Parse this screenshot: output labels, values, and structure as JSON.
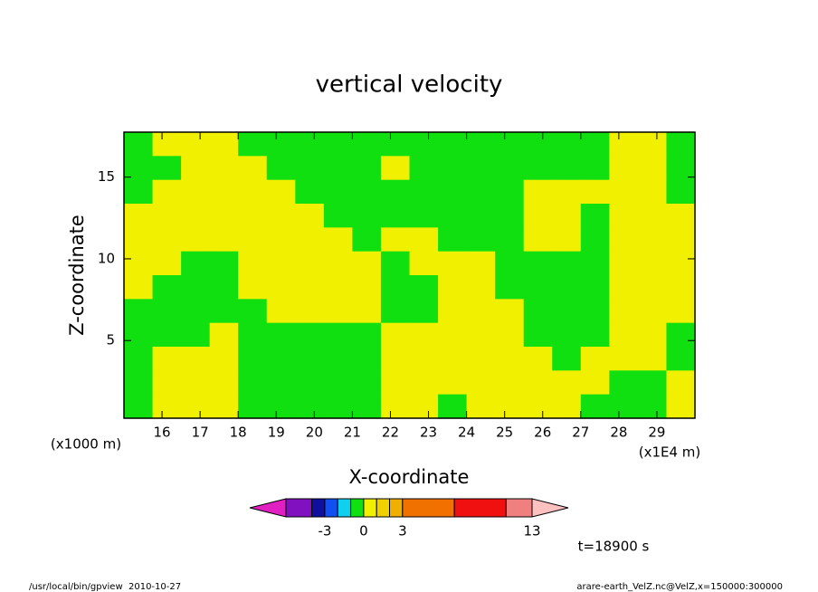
{
  "chart_data": {
    "type": "contour",
    "title": "vertical velocity",
    "x_label": "X-coordinate",
    "y_label": "Z-coordinate",
    "x_unit": "(x1E4 m)",
    "y_unit": "(x1000 m)",
    "xlim": [
      15,
      30
    ],
    "ylim": [
      0.25,
      17.75
    ],
    "xticks": [
      16,
      17,
      18,
      19,
      20,
      21,
      22,
      23,
      24,
      25,
      26,
      27,
      28,
      29
    ],
    "yticks": [
      5,
      10,
      15
    ],
    "z": [
      [
        -0.5,
        0.5,
        0.5,
        0.5,
        -0.5,
        -0.5,
        -0.5,
        -0.5,
        -0.5,
        -0.5,
        -0.5,
        -0.5,
        -0.5,
        -0.5,
        -0.5,
        -0.5,
        -0.5,
        0.5,
        0.5,
        -0.5
      ],
      [
        -0.5,
        -0.5,
        0.5,
        0.5,
        0.5,
        -0.5,
        -0.5,
        -0.5,
        -0.5,
        0.5,
        -0.5,
        -0.5,
        -0.5,
        -0.5,
        -0.5,
        -0.5,
        -0.5,
        0.5,
        0.5,
        -0.5
      ],
      [
        -0.5,
        0.5,
        0.5,
        0.5,
        0.5,
        0.5,
        -0.5,
        -0.5,
        -0.5,
        -0.5,
        -0.5,
        -0.5,
        -0.5,
        -0.5,
        0.5,
        0.5,
        0.5,
        0.5,
        0.5,
        -0.5
      ],
      [
        0.5,
        0.5,
        0.5,
        0.5,
        0.5,
        0.5,
        0.5,
        -0.5,
        -0.5,
        -0.5,
        -0.5,
        -0.5,
        -0.5,
        -0.5,
        0.5,
        0.5,
        -0.5,
        0.5,
        0.5,
        0.5
      ],
      [
        0.5,
        0.5,
        0.5,
        0.5,
        0.5,
        0.5,
        0.5,
        0.5,
        -0.5,
        0.5,
        0.5,
        -0.5,
        -0.5,
        -0.5,
        0.5,
        0.5,
        -0.5,
        0.5,
        0.5,
        0.5
      ],
      [
        0.5,
        0.5,
        -0.5,
        -0.5,
        0.5,
        0.5,
        0.5,
        0.5,
        0.5,
        -0.5,
        0.5,
        0.5,
        0.5,
        -0.5,
        -0.5,
        -0.5,
        -0.5,
        0.5,
        0.5,
        0.5
      ],
      [
        0.5,
        -0.5,
        -0.5,
        -0.5,
        0.5,
        0.5,
        0.5,
        0.5,
        0.5,
        -0.5,
        -0.5,
        0.5,
        0.5,
        -0.5,
        -0.5,
        -0.5,
        -0.5,
        0.5,
        0.5,
        0.5
      ],
      [
        -0.5,
        -0.5,
        -0.5,
        -0.5,
        -0.5,
        0.5,
        0.5,
        0.5,
        0.5,
        -0.5,
        -0.5,
        0.5,
        0.5,
        0.5,
        -0.5,
        -0.5,
        -0.5,
        0.5,
        0.5,
        0.5
      ],
      [
        -0.5,
        -0.5,
        -0.5,
        0.5,
        -0.5,
        -0.5,
        -0.5,
        -0.5,
        -0.5,
        0.5,
        0.5,
        0.5,
        0.5,
        0.5,
        -0.5,
        -0.5,
        -0.5,
        0.5,
        0.5,
        -0.5
      ],
      [
        -0.5,
        0.5,
        0.5,
        0.5,
        -0.5,
        -0.5,
        -0.5,
        -0.5,
        -0.5,
        0.5,
        0.5,
        0.5,
        0.5,
        0.5,
        0.5,
        -0.5,
        0.5,
        0.5,
        0.5,
        -0.5
      ],
      [
        -0.5,
        0.5,
        0.5,
        0.5,
        -0.5,
        -0.5,
        -0.5,
        -0.5,
        -0.5,
        0.5,
        0.5,
        0.5,
        0.5,
        0.5,
        0.5,
        0.5,
        0.5,
        -0.5,
        -0.5,
        0.5
      ],
      [
        -0.5,
        0.5,
        0.5,
        0.5,
        -0.5,
        -0.5,
        -0.5,
        -0.5,
        -0.5,
        0.5,
        0.5,
        -0.5,
        0.5,
        0.5,
        0.5,
        0.5,
        -0.5,
        -0.5,
        -0.5,
        0.5
      ]
    ],
    "colorbar": {
      "levels": [
        -6,
        -4,
        -3,
        -2,
        -1,
        0,
        1,
        2,
        3,
        7,
        11,
        13
      ],
      "colors": [
        "#e020c0",
        "#8010c0",
        "#1010a0",
        "#1050f0",
        "#10d0f0",
        "#10e010",
        "#f0f000",
        "#f0d000",
        "#f0b000",
        "#f07000",
        "#f01010",
        "#f08080",
        "#ffc0c0"
      ],
      "ticks": [
        -3,
        0,
        3,
        13
      ]
    },
    "time_label": "t=18900 s",
    "footer_left": "/usr/local/bin/gpview  2010-10-27",
    "footer_right": "arare-earth_VelZ.nc@VelZ,x=150000:300000"
  }
}
